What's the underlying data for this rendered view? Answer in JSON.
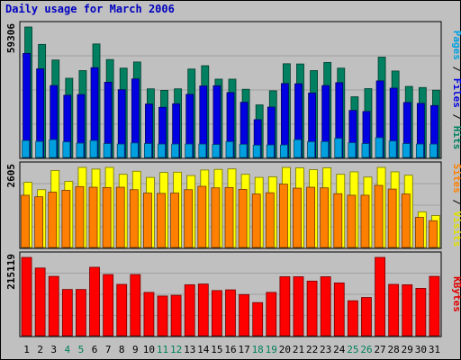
{
  "title": "Daily usage for March 2006",
  "chart_data": {
    "type": "bar",
    "categories": [
      "1",
      "2",
      "3",
      "4",
      "5",
      "6",
      "7",
      "8",
      "9",
      "10",
      "11",
      "12",
      "13",
      "14",
      "15",
      "16",
      "17",
      "18",
      "19",
      "20",
      "21",
      "22",
      "23",
      "24",
      "25",
      "26",
      "27",
      "28",
      "29",
      "30",
      "31"
    ],
    "weekend_days": [
      "4",
      "5",
      "11",
      "12",
      "18",
      "19",
      "25",
      "26"
    ],
    "panels": [
      {
        "id": "hits",
        "ymax_label": "59306",
        "ymax": 59306,
        "ylabel": [
          "Pages",
          "Files",
          "Hits"
        ],
        "ylabel_colors": [
          "#00a0e0",
          "#0000e0",
          "#008060"
        ],
        "series": [
          {
            "name": "Hits",
            "color": "#008060",
            "values": [
              59306,
              51400,
              44300,
              36000,
              39500,
              51600,
              44500,
              40600,
              43400,
              31200,
              30500,
              31200,
              40200,
              41700,
              35600,
              35600,
              31000,
              23900,
              30300,
              42600,
              42500,
              39500,
              43200,
              40600,
              27600,
              31300,
              45600,
              39300,
              32300,
              31800,
              30600
            ]
          },
          {
            "name": "Files",
            "color": "#0000e0",
            "values": [
              47300,
              40300,
              32700,
              28300,
              28600,
              40800,
              34200,
              30800,
              35700,
              24300,
              22800,
              24400,
              28700,
              32500,
              32600,
              29500,
              25100,
              17200,
              22900,
              33600,
              33500,
              29300,
              32700,
              34000,
              21400,
              20900,
              34800,
              31500,
              25000,
              24600,
              23600
            ]
          },
          {
            "name": "Pages",
            "color": "#00a0e0",
            "values": [
              7700,
              7300,
              8100,
              7100,
              6500,
              7700,
              6300,
              6100,
              6600,
              6300,
              6100,
              6100,
              6100,
              6100,
              5900,
              7200,
              6000,
              5600,
              5700,
              5700,
              8100,
              7200,
              7200,
              8700,
              6700,
              6300,
              9000,
              7500,
              6300,
              6100,
              6100
            ]
          }
        ]
      },
      {
        "id": "visits",
        "ymax_label": "2605",
        "ymax": 2605,
        "ylabel": [
          "Sites",
          "Visits"
        ],
        "ylabel_colors": [
          "#ff8000",
          "#e0e000"
        ],
        "series": [
          {
            "name": "Visits",
            "color": "#ffff00",
            "values": [
              2120,
              1880,
              2505,
              2150,
              2605,
              2550,
              2605,
              2380,
              2480,
              2280,
              2440,
              2450,
              2340,
              2520,
              2540,
              2555,
              2380,
              2280,
              2300,
              2605,
              2590,
              2530,
              2590,
              2380,
              2460,
              2290,
              2605,
              2460,
              2350,
              1160,
              1040
            ]
          },
          {
            "name": "Sites",
            "color": "#ff8000",
            "values": [
              1700,
              1650,
              1800,
              1860,
              1980,
              1960,
              1950,
              1960,
              1880,
              1770,
              1760,
              1770,
              1880,
              1990,
              1940,
              1950,
              1890,
              1740,
              1780,
              2060,
              1930,
              1960,
              1940,
              1750,
              1700,
              1700,
              2020,
              1900,
              1740,
              980,
              870
            ]
          }
        ]
      },
      {
        "id": "kbytes",
        "ymax_label": "215119",
        "ymax": 215119,
        "ylabel": [
          "KBytes"
        ],
        "ylabel_colors": [
          "#e00000"
        ],
        "series": [
          {
            "name": "KBytes",
            "color": "#ff0000",
            "values": [
              215119,
              186000,
              163000,
              127000,
              127000,
              188000,
              168000,
              141000,
              168000,
              119000,
              109000,
              111000,
              140000,
              142000,
              124000,
              126000,
              113000,
              91000,
              119000,
              162000,
              162000,
              150000,
              162000,
              145000,
              96000,
              105000,
              215119,
              141000,
              140000,
              130000,
              163000
            ]
          }
        ]
      }
    ],
    "xlabel": "",
    "grid": true
  }
}
